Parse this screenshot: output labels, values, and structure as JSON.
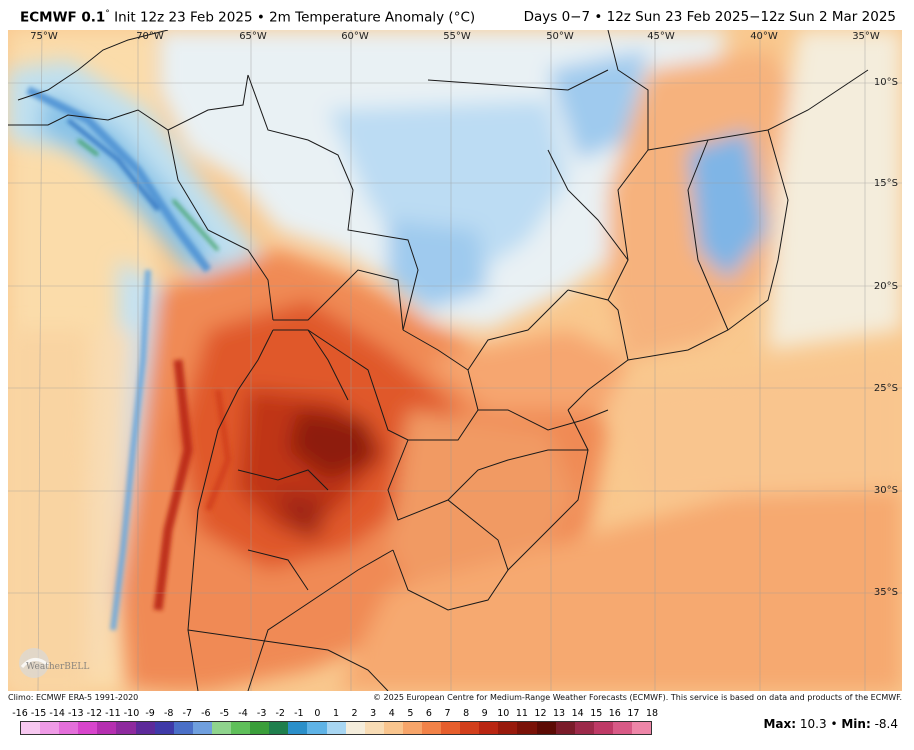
{
  "header": {
    "model": "ECMWF 0.1",
    "degree": "°",
    "description": "Init 12z 23 Feb 2025 • 2m Temperature Anomaly (°C)",
    "valid": "Days 0−7 • 12z Sun 23 Feb 2025−12z Sun 2 Mar 2025"
  },
  "longitudes": [
    "75°W",
    "70°W",
    "65°W",
    "60°W",
    "55°W",
    "50°W",
    "45°W",
    "40°W",
    "35°W"
  ],
  "latitudes": [
    "10°S",
    "15°S",
    "20°S",
    "25°S",
    "30°S",
    "35°S"
  ],
  "footer": {
    "climo": "Climo: ECMWF ERA-5 1991-2020",
    "copyright": "© 2025 European Centre for Medium-Range Weather Forecasts (ECMWF). This service is based on data and products of the ECMWF.",
    "max_label": "Max:",
    "max_value": "10.3",
    "separator": "•",
    "min_label": "Min:",
    "min_value": "-8.4"
  },
  "logo": {
    "text": "WeatherBELL"
  },
  "colorbar": {
    "labels": [
      "-16",
      "-15",
      "-14",
      "-13",
      "-12",
      "-11",
      "-10",
      "-9",
      "-8",
      "-7",
      "-6",
      "-5",
      "-4",
      "-3",
      "-2",
      "-1",
      "0",
      "1",
      "2",
      "3",
      "4",
      "5",
      "6",
      "7",
      "8",
      "9",
      "10",
      "11",
      "12",
      "13",
      "14",
      "15",
      "16",
      "17",
      "18"
    ],
    "colors": [
      "#f7c8f0",
      "#ef9be6",
      "#e46fda",
      "#d845cc",
      "#b52fb0",
      "#8e2a9e",
      "#5d2a9a",
      "#3f3aa8",
      "#4a6fc7",
      "#6f9fde",
      "#8fd48d",
      "#5fbf5a",
      "#3a9e3a",
      "#1f7f4d",
      "#2b8fc9",
      "#5fb3e6",
      "#a8d6f2",
      "#f4eddc",
      "#f8dcb5",
      "#f9c58e",
      "#f7a56a",
      "#f28248",
      "#e65e2c",
      "#d23f1c",
      "#b92612",
      "#981a0c",
      "#7a1208",
      "#5c0b05",
      "#7a1c2a",
      "#9c2a4a",
      "#be3a66",
      "#d85a86",
      "#ee86a8"
    ],
    "unit": "°C"
  }
}
